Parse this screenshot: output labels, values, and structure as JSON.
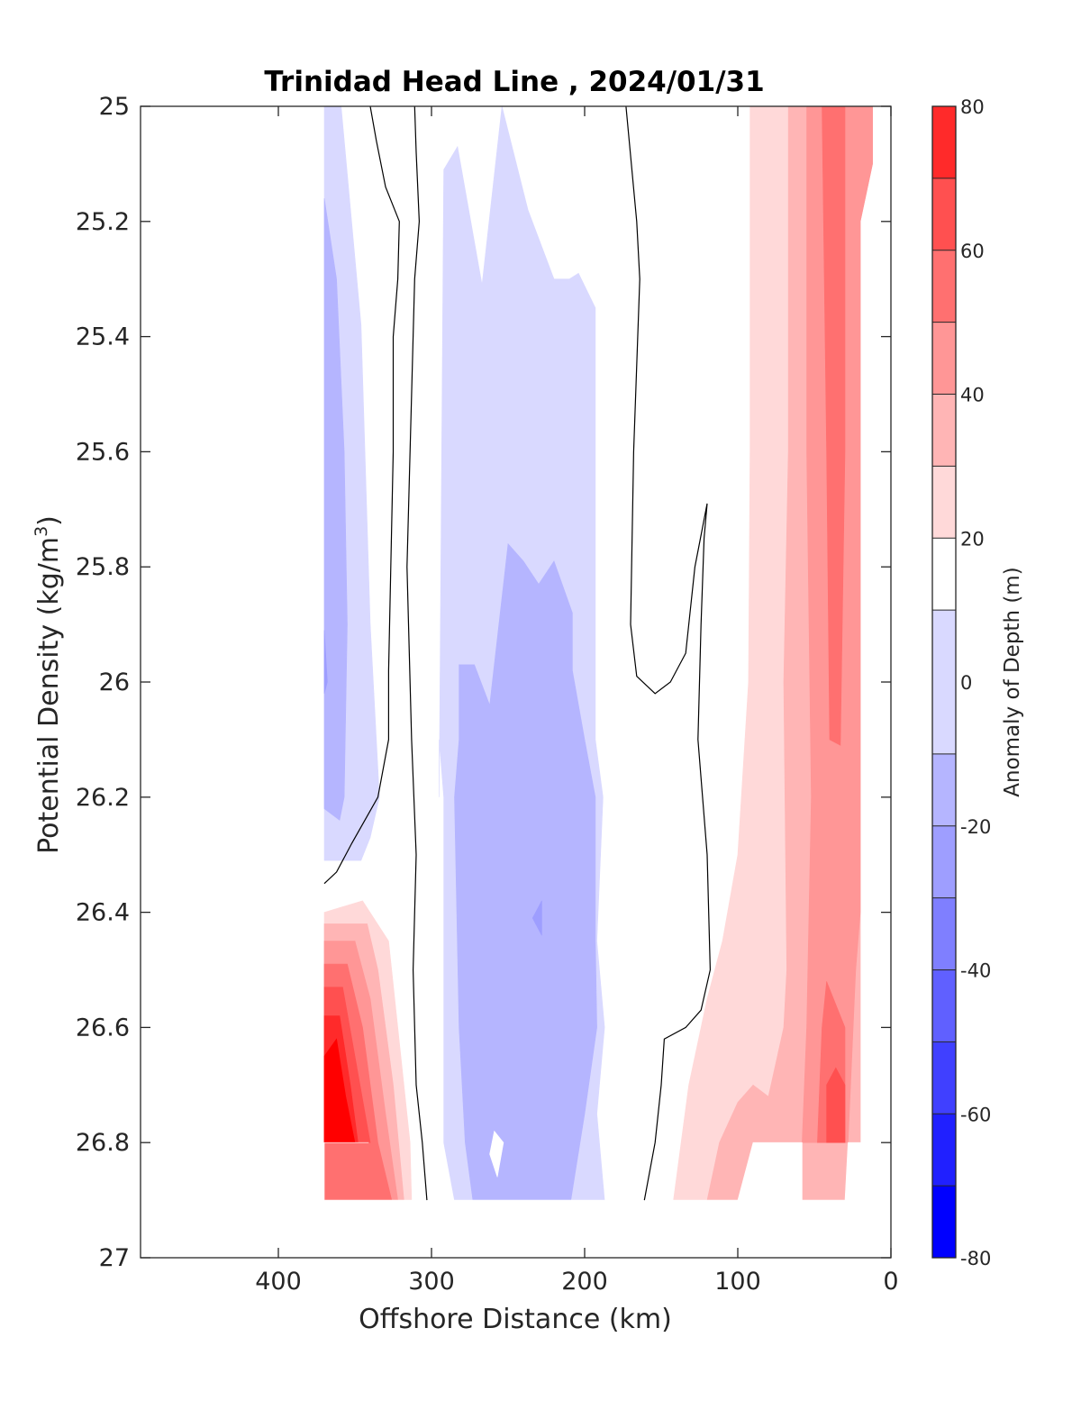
{
  "chart_data": {
    "type": "contour",
    "title": "Trinidad Head Line , 2024/01/31",
    "xlabel": "Offshore Distance (km)",
    "ylabel": "Potential Density (kg/m",
    "ylabel_sup": "3",
    "ylabel_close": ")",
    "xlim": [
      490,
      0
    ],
    "ylim": [
      25,
      27
    ],
    "x_ticks": [
      400,
      300,
      200,
      100,
      0
    ],
    "y_ticks": [
      25,
      25.2,
      25.4,
      25.6,
      25.8,
      26,
      26.2,
      26.4,
      26.6,
      26.8,
      27
    ],
    "x_tick_labels": [
      "400",
      "300",
      "200",
      "100",
      "0"
    ],
    "y_tick_labels": [
      "25",
      "25.2",
      "25.4",
      "25.6",
      "25.8",
      "26",
      "26.2",
      "26.4",
      "26.6",
      "26.8",
      "27"
    ],
    "colorbar": {
      "label": "Anomaly of Depth (m)",
      "range": [
        -80,
        80
      ],
      "ticks": [
        80,
        60,
        40,
        20,
        0,
        -20,
        -40,
        -60,
        -80
      ],
      "tick_labels": [
        "80",
        "60",
        "40",
        "20",
        "0",
        "-20",
        "-40",
        "-60",
        "-80"
      ],
      "levels": [
        -80,
        -70,
        -60,
        -50,
        -40,
        -30,
        -20,
        -10,
        10,
        20,
        30,
        40,
        50,
        60,
        70,
        80
      ],
      "colors": [
        "#0000ff",
        "#2020ff",
        "#4040ff",
        "#6060ff",
        "#7f7fff",
        "#9e9eff",
        "#b5b5ff",
        "#d9d9ff",
        "#ffffff",
        "#ffd9d9",
        "#ffb5b5",
        "#ff9696",
        "#ff7070",
        "#ff5050",
        "#ff2a2a",
        "#ff0000"
      ]
    },
    "regions": [
      {
        "anomaly": -15,
        "color": "#d9d9ff",
        "points": [
          [
            370,
            25
          ],
          [
            359,
            25
          ],
          [
            346,
            25.38
          ],
          [
            340,
            25.9
          ],
          [
            334,
            26.2
          ],
          [
            340,
            26.27
          ],
          [
            346,
            26.31
          ],
          [
            370,
            26.31
          ]
        ]
      },
      {
        "anomaly": -25,
        "color": "#b5b5ff",
        "points": [
          [
            370,
            25.16
          ],
          [
            362,
            25.3
          ],
          [
            357,
            25.6
          ],
          [
            355,
            25.9
          ],
          [
            357,
            26.2
          ],
          [
            360,
            26.24
          ],
          [
            370,
            26.22
          ]
        ]
      },
      {
        "anomaly": -35,
        "color": "#9e9eff",
        "points": [
          [
            370,
            25.91
          ],
          [
            368,
            26
          ],
          [
            370,
            26.02
          ]
        ]
      },
      {
        "anomaly": -15,
        "color": "#d9d9ff",
        "points": [
          [
            292,
            25.11
          ],
          [
            283,
            25.07
          ],
          [
            267,
            25.31
          ],
          [
            254,
            25
          ],
          [
            237,
            25.18
          ],
          [
            220,
            25.3
          ],
          [
            210,
            25.3
          ],
          [
            204,
            25.29
          ],
          [
            193,
            25.35
          ],
          [
            193,
            26.1
          ],
          [
            188,
            26.2
          ],
          [
            192,
            26.45
          ],
          [
            187,
            26.6
          ],
          [
            192,
            26.75
          ],
          [
            187,
            26.9
          ],
          [
            285,
            26.9
          ],
          [
            292,
            26.8
          ],
          [
            292,
            26.2
          ],
          [
            295,
            26.1
          ],
          [
            295,
            26.2
          ]
        ]
      },
      {
        "anomaly": -25,
        "color": "#b5b5ff",
        "points": [
          [
            282,
            25.97
          ],
          [
            272,
            25.97
          ],
          [
            262,
            26.04
          ],
          [
            250,
            25.76
          ],
          [
            240,
            25.79
          ],
          [
            230,
            25.83
          ],
          [
            220,
            25.79
          ],
          [
            208,
            25.88
          ],
          [
            208,
            25.98
          ],
          [
            200,
            26.1
          ],
          [
            193,
            26.2
          ],
          [
            193,
            26.45
          ],
          [
            192,
            26.6
          ],
          [
            200,
            26.75
          ],
          [
            209,
            26.9
          ],
          [
            273,
            26.9
          ],
          [
            278,
            26.8
          ],
          [
            282,
            26.6
          ],
          [
            285,
            26.2
          ],
          [
            282,
            26.1
          ]
        ]
      },
      {
        "anomaly": -35,
        "color": "#9e9eff",
        "points": [
          [
            228,
            26.38
          ],
          [
            234,
            26.41
          ],
          [
            228,
            26.44
          ]
        ]
      },
      {
        "anomaly": 15,
        "color": "#ffd9d9",
        "points": [
          [
            92,
            25
          ],
          [
            92,
            25.6
          ],
          [
            93,
            26.0
          ],
          [
            100,
            26.3
          ],
          [
            110,
            26.45
          ],
          [
            120,
            26.55
          ],
          [
            132,
            26.7
          ],
          [
            142,
            26.9
          ],
          [
            20,
            26.9
          ],
          [
            20,
            25.2
          ],
          [
            12,
            25.1
          ],
          [
            12,
            25
          ]
        ]
      },
      {
        "anomaly": 25,
        "color": "#ffb5b5",
        "points": [
          [
            67,
            25
          ],
          [
            67,
            25.6
          ],
          [
            70,
            26.0
          ],
          [
            68,
            26.5
          ],
          [
            70,
            26.6
          ],
          [
            80,
            26.72
          ],
          [
            90,
            26.7
          ],
          [
            100,
            26.73
          ],
          [
            112,
            26.8
          ],
          [
            120,
            26.9
          ],
          [
            20,
            26.9
          ],
          [
            20,
            25.2
          ],
          [
            12,
            25.1
          ],
          [
            12,
            25
          ]
        ]
      },
      {
        "anomaly": 35,
        "color": "#ff9696",
        "points": [
          [
            55,
            25
          ],
          [
            55,
            25.6
          ],
          [
            52,
            26.2
          ],
          [
            55,
            26.6
          ],
          [
            58,
            26.8
          ],
          [
            28,
            26.8
          ],
          [
            23,
            26.5
          ],
          [
            20,
            26.4
          ],
          [
            20,
            25.2
          ],
          [
            12,
            25.1
          ],
          [
            12,
            25
          ]
        ]
      },
      {
        "anomaly": 45,
        "color": "#ff7070",
        "points": [
          [
            45,
            25
          ],
          [
            42,
            25.6
          ],
          [
            40,
            26.1
          ],
          [
            33,
            26.11
          ],
          [
            30,
            25.6
          ],
          [
            30,
            25
          ]
        ]
      },
      {
        "anomaly": 45,
        "color": "#ff7070",
        "points": [
          [
            45,
            26.6
          ],
          [
            42,
            26.52
          ],
          [
            30,
            26.6
          ],
          [
            30,
            26.8
          ],
          [
            48,
            26.8
          ]
        ]
      },
      {
        "anomaly": 55,
        "color": "#ff5050",
        "points": [
          [
            42,
            26.7
          ],
          [
            36,
            26.67
          ],
          [
            30,
            26.7
          ],
          [
            30,
            26.8
          ],
          [
            42,
            26.8
          ]
        ]
      },
      {
        "anomaly": 15,
        "color": "#ffd9d9",
        "points": [
          [
            370,
            26.4
          ],
          [
            345,
            26.38
          ],
          [
            328,
            26.45
          ],
          [
            322,
            26.6
          ],
          [
            314,
            26.8
          ],
          [
            313,
            26.9
          ],
          [
            370,
            26.9
          ]
        ]
      },
      {
        "anomaly": 25,
        "color": "#ffb5b5",
        "points": [
          [
            370,
            26.42
          ],
          [
            342,
            26.42
          ],
          [
            335,
            26.5
          ],
          [
            325,
            26.7
          ],
          [
            318,
            26.9
          ],
          [
            370,
            26.9
          ]
        ]
      },
      {
        "anomaly": 35,
        "color": "#ff9696",
        "points": [
          [
            370,
            26.45
          ],
          [
            350,
            26.45
          ],
          [
            340,
            26.55
          ],
          [
            330,
            26.75
          ],
          [
            322,
            26.9
          ],
          [
            370,
            26.9
          ]
        ]
      },
      {
        "anomaly": 45,
        "color": "#ff7070",
        "points": [
          [
            370,
            26.49
          ],
          [
            355,
            26.49
          ],
          [
            345,
            26.6
          ],
          [
            335,
            26.8
          ],
          [
            326,
            26.9
          ],
          [
            370,
            26.9
          ]
        ]
      },
      {
        "anomaly": 55,
        "color": "#ff5050",
        "points": [
          [
            370,
            26.53
          ],
          [
            358,
            26.53
          ],
          [
            350,
            26.65
          ],
          [
            340,
            26.8
          ],
          [
            370,
            26.8
          ]
        ]
      },
      {
        "anomaly": 65,
        "color": "#ff2a2a",
        "points": [
          [
            370,
            26.58
          ],
          [
            360,
            26.58
          ],
          [
            353,
            26.7
          ],
          [
            348,
            26.8
          ],
          [
            370,
            26.8
          ]
        ]
      },
      {
        "anomaly": 75,
        "color": "#ff0000",
        "points": [
          [
            370,
            26.65
          ],
          [
            362,
            26.62
          ],
          [
            356,
            26.72
          ],
          [
            350,
            26.8
          ],
          [
            370,
            26.8
          ]
        ]
      },
      {
        "anomaly": 0,
        "color": "#ffffff",
        "points": [
          [
            341,
            26.8
          ],
          [
            490,
            26.8
          ],
          [
            490,
            27
          ],
          [
            0,
            27
          ],
          [
            0,
            26.9
          ],
          [
            370,
            26.9
          ],
          [
            370,
            26.8
          ]
        ]
      },
      {
        "anomaly": 0,
        "color": "#ffffff",
        "points": [
          [
            90,
            26.8
          ],
          [
            58,
            26.8
          ],
          [
            58,
            26.9
          ],
          [
            100,
            26.9
          ]
        ]
      },
      {
        "anomaly": 0,
        "color": "#ffffff",
        "points": [
          [
            28,
            26.8
          ],
          [
            0,
            26.8
          ],
          [
            0,
            26.9
          ],
          [
            30,
            26.9
          ]
        ]
      },
      {
        "anomaly": 0,
        "color": "#ffffff",
        "points": [
          [
            259,
            26.78
          ],
          [
            253,
            26.8
          ],
          [
            257,
            26.86
          ],
          [
            262,
            26.82
          ]
        ]
      }
    ],
    "contour_lines": [
      {
        "anomaly": -10,
        "points": [
          [
            370,
            26.35
          ],
          [
            362,
            26.33
          ],
          [
            352,
            26.28
          ],
          [
            335,
            26.2
          ],
          [
            328,
            26.1
          ],
          [
            328,
            25.98
          ],
          [
            325,
            25.6
          ],
          [
            325,
            25.4
          ],
          [
            322,
            25.3
          ],
          [
            321,
            25.2
          ],
          [
            330,
            25.14
          ],
          [
            336,
            25.06
          ],
          [
            340,
            25
          ]
        ]
      },
      {
        "anomaly": -10,
        "points": [
          [
            311,
            25
          ],
          [
            310,
            25.08
          ],
          [
            308,
            25.2
          ],
          [
            311,
            25.3
          ],
          [
            313,
            25.5
          ],
          [
            316,
            25.8
          ],
          [
            313,
            26.1
          ],
          [
            310,
            26.3
          ],
          [
            312,
            26.5
          ],
          [
            310,
            26.7
          ],
          [
            306,
            26.8
          ],
          [
            303,
            26.9
          ]
        ]
      },
      {
        "anomaly": -10,
        "points": [
          [
            173,
            25
          ],
          [
            166,
            25.2
          ],
          [
            164,
            25.3
          ],
          [
            168,
            25.6
          ],
          [
            170,
            25.9
          ],
          [
            166,
            25.99
          ],
          [
            154,
            26.02
          ],
          [
            144,
            26.0
          ],
          [
            134,
            25.95
          ],
          [
            128,
            25.8
          ],
          [
            120,
            25.69
          ],
          [
            122,
            25.75
          ],
          [
            124,
            25.9
          ],
          [
            126,
            26.1
          ],
          [
            120,
            26.3
          ],
          [
            118,
            26.5
          ],
          [
            124,
            26.57
          ],
          [
            134,
            26.6
          ],
          [
            148,
            26.62
          ],
          [
            150,
            26.7
          ],
          [
            154,
            26.8
          ],
          [
            161,
            26.9
          ]
        ]
      }
    ]
  }
}
